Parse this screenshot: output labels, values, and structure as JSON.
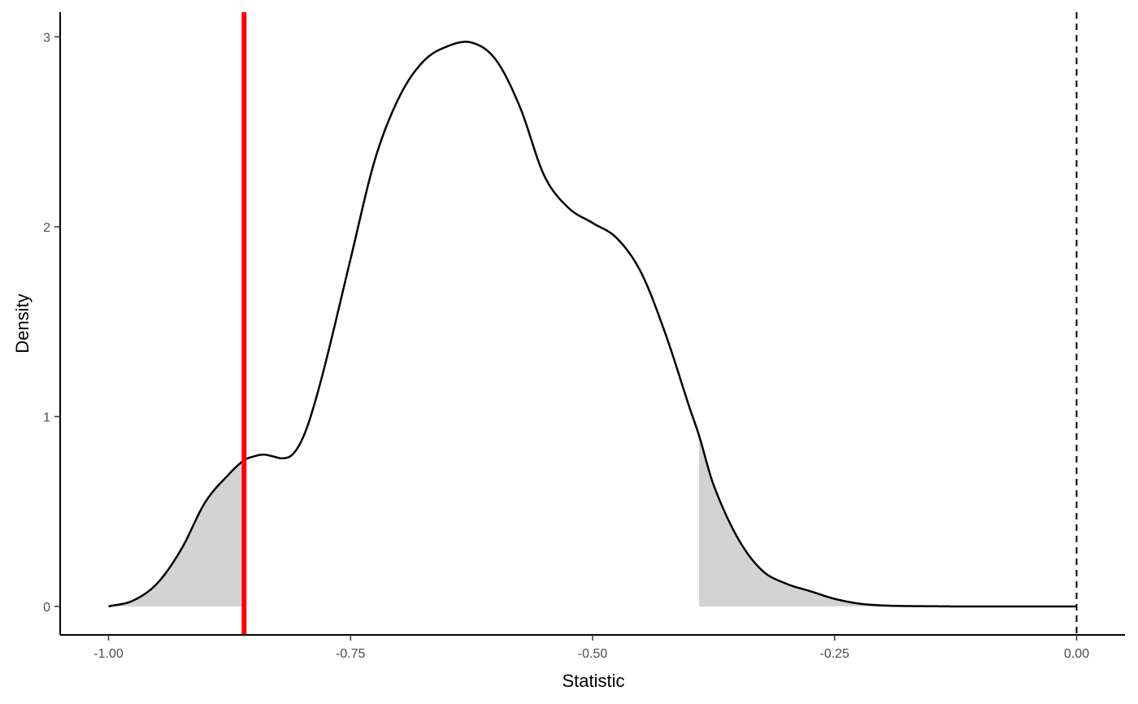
{
  "chart_data": {
    "type": "area",
    "title": "",
    "xlabel": "Statistic",
    "ylabel": "Density",
    "xlim": [
      -1.05,
      0.05
    ],
    "ylim": [
      -0.15,
      3.13
    ],
    "x_ticks": [
      -1.0,
      -0.75,
      -0.5,
      -0.25,
      0.0
    ],
    "x_tick_labels": [
      "-1.00",
      "-0.75",
      "-0.50",
      "-0.25",
      "0.00"
    ],
    "y_ticks": [
      0,
      1,
      2,
      3
    ],
    "y_tick_labels": [
      "0",
      "1",
      "2",
      "3"
    ],
    "grid": false,
    "legend": "none",
    "density_curve": {
      "x": [
        -1.0,
        -0.975,
        -0.95,
        -0.925,
        -0.9,
        -0.875,
        -0.86,
        -0.85,
        -0.84,
        -0.83,
        -0.82,
        -0.81,
        -0.8,
        -0.79,
        -0.775,
        -0.75,
        -0.725,
        -0.7,
        -0.675,
        -0.65,
        -0.625,
        -0.6,
        -0.575,
        -0.55,
        -0.525,
        -0.5,
        -0.475,
        -0.45,
        -0.425,
        -0.4,
        -0.39,
        -0.375,
        -0.35,
        -0.325,
        -0.3,
        -0.275,
        -0.25,
        -0.225,
        -0.2,
        -0.175,
        -0.15,
        -0.125,
        -0.1,
        -0.05,
        0.0
      ],
      "y": [
        0.0,
        0.03,
        0.12,
        0.3,
        0.55,
        0.7,
        0.77,
        0.79,
        0.8,
        0.79,
        0.78,
        0.8,
        0.88,
        1.02,
        1.3,
        1.83,
        2.35,
        2.68,
        2.87,
        2.95,
        2.97,
        2.88,
        2.63,
        2.27,
        2.1,
        2.02,
        1.94,
        1.76,
        1.44,
        1.05,
        0.9,
        0.64,
        0.36,
        0.19,
        0.12,
        0.08,
        0.04,
        0.015,
        0.005,
        0.002,
        0.001,
        0.0,
        0.0,
        0.0,
        0.0
      ]
    },
    "shaded_tails": {
      "lower_tail_upper_bound": -0.86,
      "upper_tail_lower_bound": -0.39,
      "fill": "#d3d3d3"
    },
    "observed_statistic_line": {
      "x": -0.86,
      "color": "#ff0000"
    },
    "reference_line": {
      "x": 0.0,
      "color": "#000000",
      "style": "dashed"
    },
    "curve_color": "#000000"
  }
}
